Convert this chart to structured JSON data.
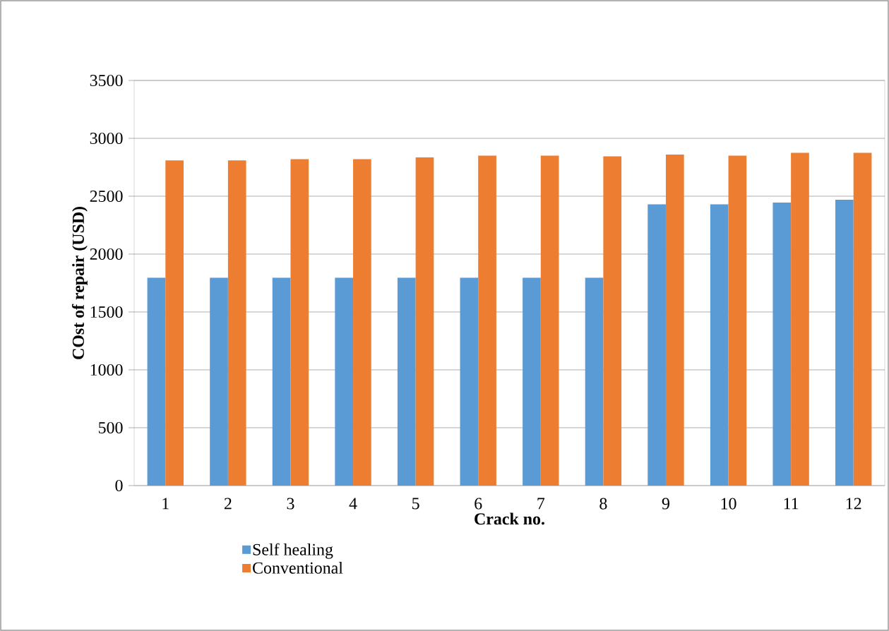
{
  "chart_data": {
    "type": "bar",
    "xlabel": "Crack no.",
    "ylabel": "COst of repair (USD)",
    "categories": [
      "1",
      "2",
      "3",
      "4",
      "5",
      "6",
      "7",
      "8",
      "9",
      "10",
      "11",
      "12"
    ],
    "series": [
      {
        "name": "Self healing",
        "color": "#5b9bd5",
        "values": [
          1795,
          1795,
          1795,
          1795,
          1795,
          1795,
          1795,
          1795,
          2430,
          2430,
          2445,
          2470
        ]
      },
      {
        "name": "Conventional",
        "color": "#ed7d31",
        "values": [
          2810,
          2810,
          2820,
          2820,
          2835,
          2850,
          2850,
          2845,
          2860,
          2850,
          2875,
          2875
        ]
      }
    ],
    "ylim": [
      0,
      3500
    ],
    "yticks": [
      0,
      500,
      1000,
      1500,
      2000,
      2500,
      3000,
      3500
    ],
    "grid": "y",
    "legend": "bottom"
  }
}
